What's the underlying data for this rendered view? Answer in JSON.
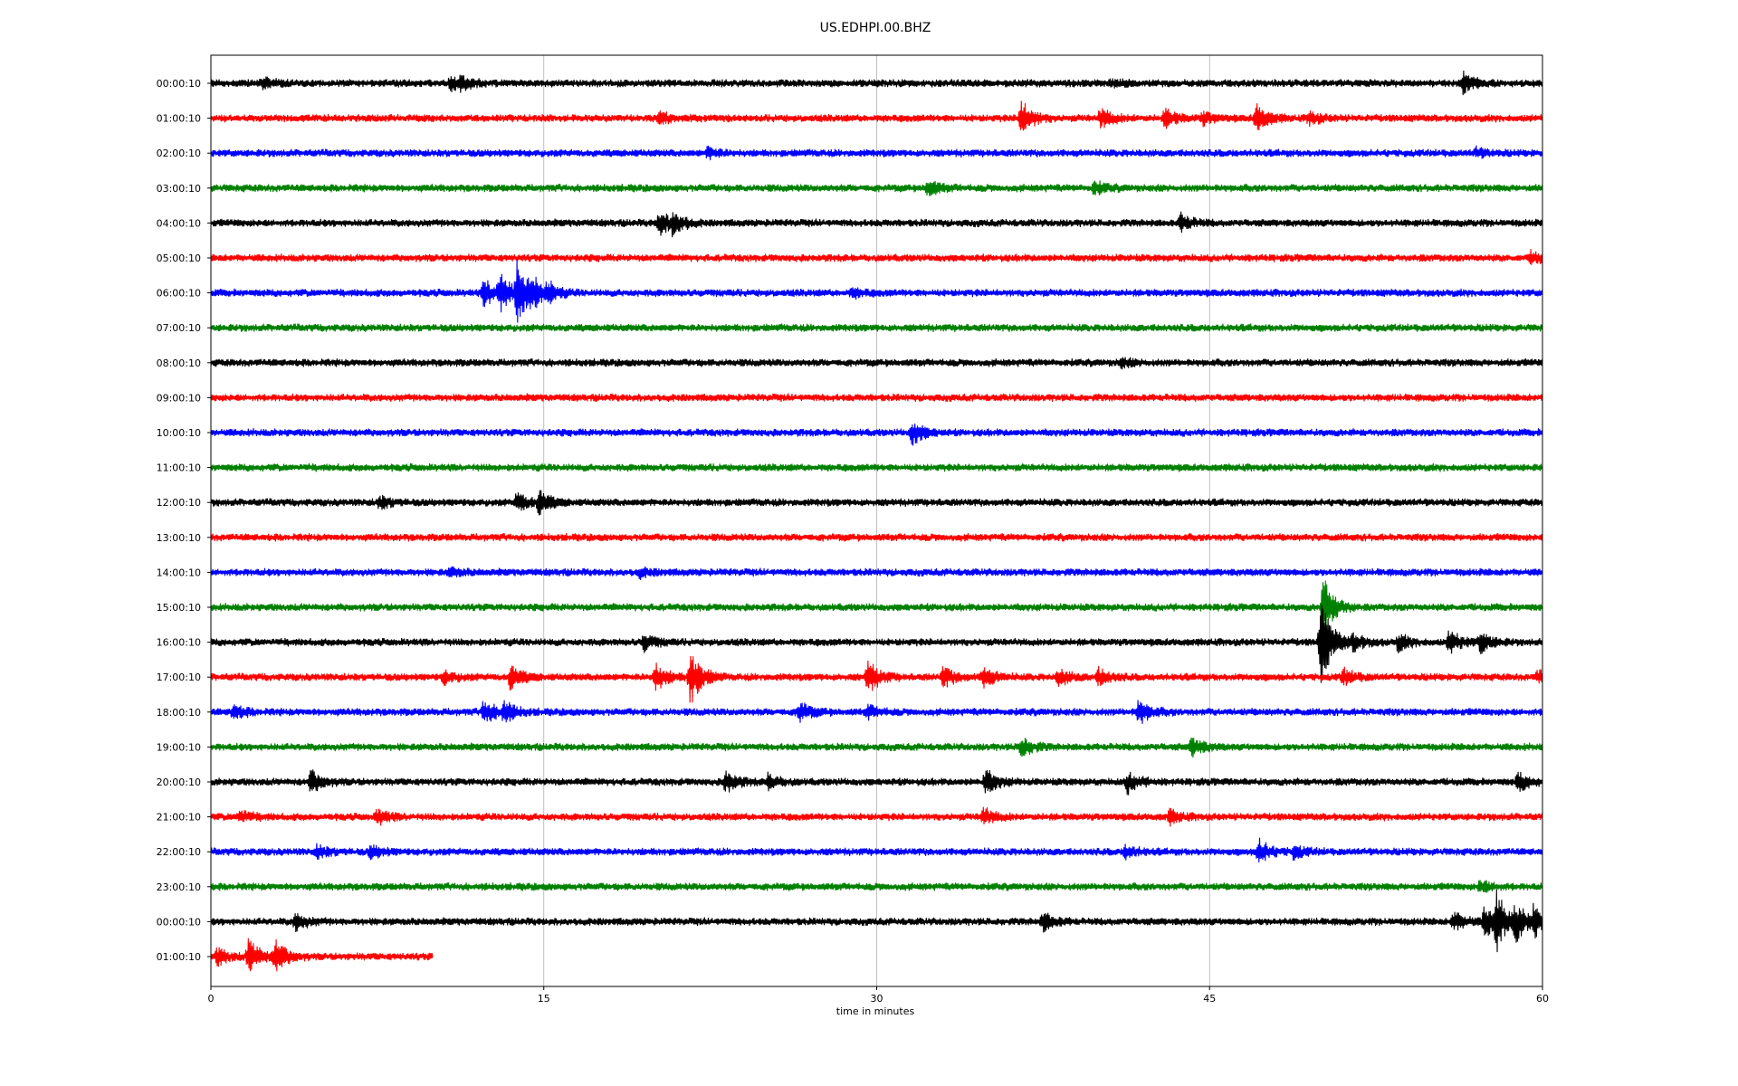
{
  "chart_data": {
    "type": "line",
    "title": "US.EDHPI.00.BHZ",
    "xlabel": "time in minutes",
    "ylabel": "",
    "xlim": [
      0,
      60
    ],
    "x_ticks": [
      "0",
      "15",
      "30",
      "45",
      "60"
    ],
    "x_tick_values": [
      0,
      15,
      30,
      45,
      60
    ],
    "grid": "vertical",
    "colors": [
      "#000000",
      "#ff0000",
      "#0000ff",
      "#008000"
    ],
    "series": [
      {
        "name": "00:00:10",
        "start": 0,
        "end": 60,
        "events": [
          [
            2.3,
            0.25
          ],
          [
            10.8,
            0.35
          ],
          [
            11.2,
            0.3
          ],
          [
            40.5,
            0.2
          ],
          [
            56.4,
            0.5
          ]
        ]
      },
      {
        "name": "01:00:10",
        "start": 0,
        "end": 60,
        "events": [
          [
            20.2,
            0.3
          ],
          [
            36.5,
            0.9
          ],
          [
            40.1,
            0.5
          ],
          [
            43.0,
            0.45
          ],
          [
            44.7,
            0.3
          ],
          [
            47.1,
            0.7
          ],
          [
            49.5,
            0.3
          ]
        ]
      },
      {
        "name": "02:00:10",
        "start": 0,
        "end": 60,
        "events": [
          [
            22.4,
            0.25
          ],
          [
            57.0,
            0.2
          ]
        ]
      },
      {
        "name": "03:00:10",
        "start": 0,
        "end": 60,
        "events": [
          [
            32.3,
            0.4
          ],
          [
            39.8,
            0.3
          ]
        ]
      },
      {
        "name": "04:00:10",
        "start": 0,
        "end": 60,
        "events": [
          [
            20.2,
            0.6
          ],
          [
            20.8,
            0.5
          ],
          [
            43.7,
            0.4
          ]
        ]
      },
      {
        "name": "05:00:10",
        "start": 0,
        "end": 60,
        "events": [
          [
            59.5,
            0.3
          ]
        ]
      },
      {
        "name": "06:00:10",
        "start": 0,
        "end": 60,
        "events": [
          [
            12.3,
            0.7
          ],
          [
            13.0,
            0.9
          ],
          [
            13.8,
            1.6
          ],
          [
            14.4,
            0.7
          ],
          [
            15.2,
            0.4
          ],
          [
            28.9,
            0.2
          ]
        ]
      },
      {
        "name": "07:00:10",
        "start": 0,
        "end": 60,
        "events": []
      },
      {
        "name": "08:00:10",
        "start": 0,
        "end": 60,
        "events": [
          [
            41.0,
            0.2
          ]
        ]
      },
      {
        "name": "09:00:10",
        "start": 0,
        "end": 60,
        "events": []
      },
      {
        "name": "10:00:10",
        "start": 0,
        "end": 60,
        "events": [
          [
            31.6,
            0.6
          ]
        ]
      },
      {
        "name": "11:00:10",
        "start": 0,
        "end": 60,
        "events": []
      },
      {
        "name": "12:00:10",
        "start": 0,
        "end": 60,
        "events": [
          [
            7.6,
            0.3
          ],
          [
            13.8,
            0.5
          ],
          [
            14.8,
            0.55
          ]
        ]
      },
      {
        "name": "13:00:10",
        "start": 0,
        "end": 60,
        "events": []
      },
      {
        "name": "14:00:10",
        "start": 0,
        "end": 60,
        "events": [
          [
            10.8,
            0.2
          ],
          [
            19.3,
            0.2
          ]
        ]
      },
      {
        "name": "15:00:10",
        "start": 0,
        "end": 60,
        "events": [
          [
            50.1,
            1.5
          ]
        ]
      },
      {
        "name": "16:00:10",
        "start": 0,
        "end": 60,
        "events": [
          [
            19.5,
            0.4
          ],
          [
            50.0,
            2.2
          ],
          [
            51.5,
            0.4
          ],
          [
            53.5,
            0.4
          ],
          [
            55.8,
            0.6
          ],
          [
            57.2,
            0.5
          ]
        ]
      },
      {
        "name": "17:00:10",
        "start": 0,
        "end": 60,
        "events": [
          [
            10.5,
            0.3
          ],
          [
            13.5,
            0.6
          ],
          [
            20.0,
            0.7
          ],
          [
            21.6,
            1.4
          ],
          [
            29.6,
            0.8
          ],
          [
            33.0,
            0.5
          ],
          [
            34.8,
            0.5
          ],
          [
            38.2,
            0.4
          ],
          [
            40.0,
            0.4
          ],
          [
            51.0,
            0.4
          ],
          [
            59.8,
            0.3
          ]
        ]
      },
      {
        "name": "18:00:10",
        "start": 0,
        "end": 60,
        "events": [
          [
            1.0,
            0.35
          ],
          [
            12.3,
            0.6
          ],
          [
            13.2,
            0.5
          ],
          [
            26.5,
            0.5
          ],
          [
            29.6,
            0.3
          ],
          [
            41.8,
            0.6
          ]
        ]
      },
      {
        "name": "19:00:10",
        "start": 0,
        "end": 60,
        "events": [
          [
            36.5,
            0.5
          ],
          [
            44.2,
            0.45
          ]
        ]
      },
      {
        "name": "20:00:10",
        "start": 0,
        "end": 60,
        "events": [
          [
            4.5,
            0.55
          ],
          [
            23.2,
            0.5
          ],
          [
            25.1,
            0.35
          ],
          [
            34.9,
            0.6
          ],
          [
            41.3,
            0.5
          ],
          [
            58.9,
            0.45
          ]
        ]
      },
      {
        "name": "21:00:10",
        "start": 0,
        "end": 60,
        "events": [
          [
            1.3,
            0.3
          ],
          [
            7.5,
            0.35
          ],
          [
            34.8,
            0.4
          ],
          [
            43.2,
            0.3
          ]
        ]
      },
      {
        "name": "22:00:10",
        "start": 0,
        "end": 60,
        "events": [
          [
            4.8,
            0.3
          ],
          [
            7.2,
            0.3
          ],
          [
            41.2,
            0.3
          ],
          [
            47.2,
            0.6
          ],
          [
            48.8,
            0.3
          ]
        ]
      },
      {
        "name": "23:00:10",
        "start": 0,
        "end": 60,
        "events": [
          [
            57.2,
            0.3
          ]
        ]
      },
      {
        "name": "00:00:10",
        "start": 0,
        "end": 60,
        "events": [
          [
            3.8,
            0.4
          ],
          [
            37.5,
            0.45
          ],
          [
            56.0,
            0.5
          ],
          [
            57.4,
            0.8
          ],
          [
            57.9,
            1.3
          ],
          [
            58.8,
            0.8
          ],
          [
            59.6,
            0.7
          ]
        ]
      },
      {
        "name": "01:00:10",
        "start": 0,
        "end": 10,
        "events": [
          [
            0.3,
            0.4
          ],
          [
            1.7,
            0.9
          ],
          [
            2.9,
            0.8
          ]
        ]
      }
    ]
  }
}
